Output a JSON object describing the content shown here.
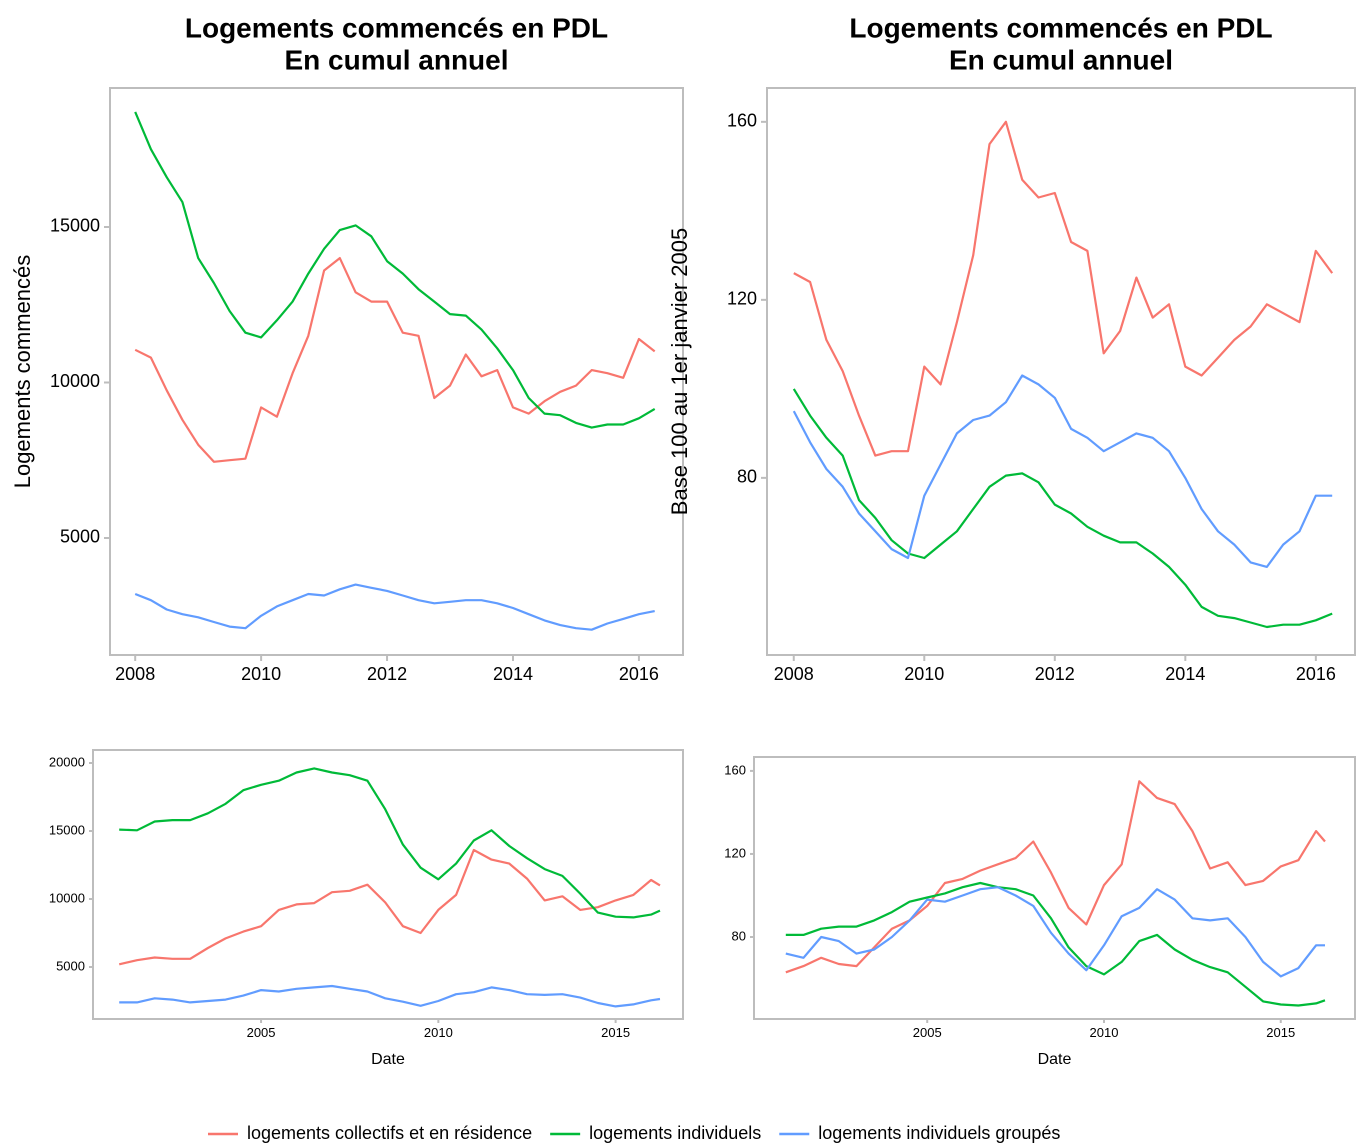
{
  "chart_data": [
    {
      "type": "line",
      "title": "Logements commencés en PDL",
      "subtitle": "En cumul annuel",
      "ylabel": "Logements commencés",
      "x": [
        2008,
        2008.25,
        2008.5,
        2008.75,
        2009,
        2009.25,
        2009.5,
        2009.75,
        2010,
        2010.25,
        2010.5,
        2010.75,
        2011,
        2011.25,
        2011.5,
        2011.75,
        2012,
        2012.25,
        2012.5,
        2012.75,
        2013,
        2013.25,
        2013.5,
        2013.75,
        2014,
        2014.25,
        2014.5,
        2014.75,
        2015,
        2015.25,
        2015.5,
        2015.75,
        2016,
        2016.25
      ],
      "series": [
        {
          "name": "logements collectifs et en résidence",
          "color": "#f8766d",
          "values": [
            11050,
            10800,
            9750,
            8800,
            8000,
            7450,
            7500,
            7550,
            9200,
            8900,
            10300,
            11500,
            13600,
            14000,
            12900,
            12600,
            12600,
            11600,
            11500,
            9500,
            9900,
            10900,
            10200,
            10400,
            9200,
            9000,
            9400,
            9700,
            9900,
            10400,
            10300,
            10150,
            11400,
            11000
          ]
        },
        {
          "name": "logements individuels",
          "color": "#00ba38",
          "values": [
            18700,
            17500,
            16600,
            15800,
            14000,
            13200,
            12300,
            11600,
            11450,
            12000,
            12600,
            13500,
            14300,
            14900,
            15050,
            14700,
            13900,
            13500,
            13000,
            12600,
            12200,
            12150,
            11700,
            11100,
            10400,
            9500,
            9000,
            8950,
            8700,
            8550,
            8650,
            8650,
            8850,
            9150
          ]
        },
        {
          "name": "logements individuels groupés",
          "color": "#619cff",
          "values": [
            3200,
            3000,
            2700,
            2550,
            2450,
            2300,
            2150,
            2100,
            2500,
            2800,
            3000,
            3200,
            3150,
            3350,
            3500,
            3400,
            3300,
            3150,
            3000,
            2900,
            2950,
            3000,
            3000,
            2900,
            2750,
            2550,
            2350,
            2200,
            2100,
            2050,
            2250,
            2400,
            2550,
            2650
          ]
        }
      ],
      "xlim": [
        2007.6,
        2016.7
      ],
      "ylim": [
        1238,
        19469
      ],
      "xticks": [
        2008,
        2010,
        2012,
        2014,
        2016
      ],
      "yticks": [
        5000,
        10000,
        15000
      ]
    },
    {
      "type": "line",
      "title": "Logements commencés en PDL",
      "subtitle": "En cumul annuel",
      "ylabel": "Base 100 au 1er janvier 2005",
      "x": [
        2008,
        2008.25,
        2008.5,
        2008.75,
        2009,
        2009.25,
        2009.5,
        2009.75,
        2010,
        2010.25,
        2010.5,
        2010.75,
        2011,
        2011.25,
        2011.5,
        2011.75,
        2012,
        2012.25,
        2012.5,
        2012.75,
        2013,
        2013.25,
        2013.5,
        2013.75,
        2014,
        2014.25,
        2014.5,
        2014.75,
        2015,
        2015.25,
        2015.5,
        2015.75,
        2016,
        2016.25
      ],
      "series": [
        {
          "name": "logements collectifs et en résidence",
          "color": "#f8766d",
          "values": [
            126,
            124,
            111,
            104,
            94,
            85,
            86,
            86,
            105,
            101,
            115,
            130,
            155,
            160,
            147,
            143,
            144,
            133,
            131,
            108,
            113,
            125,
            116,
            119,
            105,
            103,
            107,
            111,
            114,
            119,
            117,
            115,
            131,
            126
          ]
        },
        {
          "name": "logements individuels",
          "color": "#00ba38",
          "values": [
            100,
            94,
            89,
            85,
            75,
            71,
            66,
            63,
            62,
            65,
            68,
            73,
            78,
            80.5,
            81,
            79,
            74,
            72,
            69,
            67,
            65.5,
            65.5,
            63,
            60,
            56,
            51,
            49,
            48.5,
            47.5,
            46.5,
            47,
            47,
            48,
            49.5
          ]
        },
        {
          "name": "logements individuels groupés",
          "color": "#619cff",
          "values": [
            95,
            88,
            82,
            78,
            72,
            68,
            64,
            62,
            76,
            83,
            90,
            93,
            94,
            97,
            103,
            101,
            98,
            91,
            89,
            86,
            88,
            90,
            89,
            86,
            80,
            73,
            68,
            65,
            61,
            60,
            65,
            68,
            76,
            76
          ]
        }
      ],
      "xlim": [
        2007.59,
        2016.6
      ],
      "ylim": [
        40.2,
        167.6
      ],
      "xticks": [
        2008,
        2010,
        2012,
        2014,
        2016
      ],
      "yticks": [
        80,
        120,
        160
      ]
    },
    {
      "type": "line",
      "xlabel": "Date",
      "x": [
        2001,
        2001.5,
        2002,
        2002.5,
        2003,
        2003.5,
        2004,
        2004.5,
        2005,
        2005.5,
        2006,
        2006.5,
        2007,
        2007.5,
        2008,
        2008.5,
        2009,
        2009.5,
        2010,
        2010.5,
        2011,
        2011.5,
        2012,
        2012.5,
        2013,
        2013.5,
        2014,
        2014.5,
        2015,
        2015.5,
        2016,
        2016.25
      ],
      "series": [
        {
          "name": "logements collectifs et en résidence",
          "color": "#f8766d",
          "values": [
            5200,
            5500,
            5700,
            5600,
            5600,
            6400,
            7100,
            7600,
            8000,
            9200,
            9600,
            9700,
            10500,
            10600,
            11050,
            9750,
            8000,
            7500,
            9200,
            10300,
            13600,
            12900,
            12600,
            11500,
            9900,
            10200,
            9200,
            9400,
            9900,
            10300,
            11400,
            11000
          ]
        },
        {
          "name": "logements individuels",
          "color": "#00ba38",
          "values": [
            15100,
            15050,
            15700,
            15800,
            15800,
            16300,
            17000,
            18000,
            18400,
            18700,
            19300,
            19600,
            19300,
            19100,
            18700,
            16600,
            14000,
            12300,
            11450,
            12600,
            14300,
            15050,
            13900,
            13000,
            12200,
            11700,
            10400,
            9000,
            8700,
            8650,
            8850,
            9150
          ]
        },
        {
          "name": "logements individuels groupés",
          "color": "#619cff",
          "values": [
            2400,
            2400,
            2700,
            2600,
            2400,
            2500,
            2600,
            2900,
            3300,
            3200,
            3400,
            3500,
            3600,
            3400,
            3200,
            2700,
            2450,
            2150,
            2500,
            3000,
            3150,
            3500,
            3300,
            3000,
            2950,
            3000,
            2750,
            2350,
            2100,
            2250,
            2550,
            2650
          ]
        }
      ],
      "xlim": [
        2000.26,
        2016.9
      ],
      "ylim": [
        1176,
        20956
      ],
      "xticks": [
        2005,
        2010,
        2015
      ],
      "yticks": [
        5000,
        10000,
        15000,
        20000
      ]
    },
    {
      "type": "line",
      "xlabel": "Date",
      "x": [
        2001,
        2001.5,
        2002,
        2002.5,
        2003,
        2003.5,
        2004,
        2004.5,
        2005,
        2005.5,
        2006,
        2006.5,
        2007,
        2007.5,
        2008,
        2008.5,
        2009,
        2009.5,
        2010,
        2010.5,
        2011,
        2011.5,
        2012,
        2012.5,
        2013,
        2013.5,
        2014,
        2014.5,
        2015,
        2015.5,
        2016,
        2016.25
      ],
      "series": [
        {
          "name": "logements collectifs et en résidence",
          "color": "#f8766d",
          "values": [
            63,
            66,
            70,
            67,
            66,
            75,
            84,
            88,
            95,
            106,
            108,
            112,
            115,
            118,
            126,
            111,
            94,
            86,
            105,
            115,
            155,
            147,
            144,
            131,
            113,
            116,
            105,
            107,
            114,
            117,
            131,
            126
          ]
        },
        {
          "name": "logements individuels",
          "color": "#00ba38",
          "values": [
            81,
            81,
            84,
            85,
            85,
            88,
            92,
            97,
            99,
            101,
            104,
            106,
            104,
            103,
            100,
            89,
            75,
            66,
            62,
            68,
            78,
            81,
            74,
            69,
            65.5,
            63,
            56,
            49,
            47.5,
            47,
            48,
            49.5
          ]
        },
        {
          "name": "logements individuels groupés",
          "color": "#619cff",
          "values": [
            72,
            70,
            80,
            78,
            72,
            74,
            80,
            88,
            98,
            97,
            100,
            103,
            104,
            100,
            95,
            82,
            72,
            64,
            76,
            90,
            94,
            103,
            98,
            89,
            88,
            89,
            80,
            68,
            61,
            65,
            76,
            76
          ]
        }
      ],
      "xlim": [
        2000.1,
        2017.1
      ],
      "ylim": [
        40.5,
        166.7
      ],
      "xticks": [
        2005,
        2010,
        2015
      ],
      "yticks": [
        80,
        120,
        160
      ]
    }
  ]
}
